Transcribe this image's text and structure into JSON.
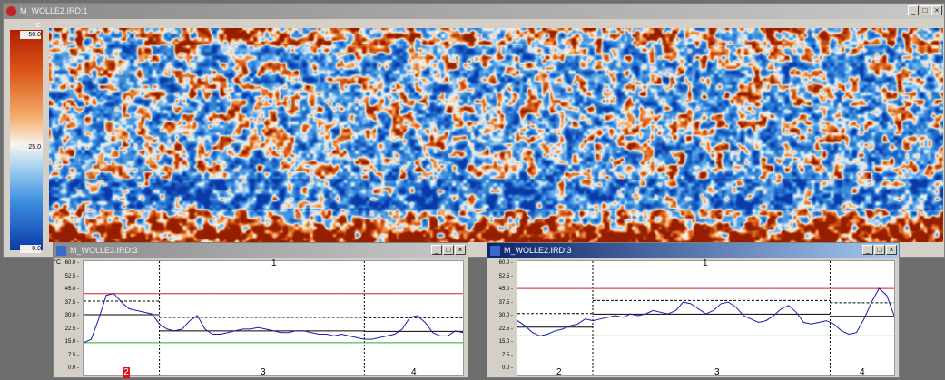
{
  "main_window": {
    "title": "M_WOLLE2.IRD:1",
    "controls": [
      "_",
      "□",
      "×"
    ]
  },
  "color_scale": {
    "unit": "°C",
    "max": "50.0",
    "mid": "25.0",
    "min": "0.0",
    "colors": {
      "hot": "#b41e00",
      "warm": "#f4b06e",
      "neutral": "#f8f4ee",
      "cool": "#3c8ee0",
      "cold": "#0b3aa8"
    }
  },
  "profile_windows": [
    {
      "title": "M_WOLLE3.IRD:3",
      "unit": "°C",
      "y_labels": [
        "60.0",
        "52.5",
        "45.0",
        "37.5",
        "30.0",
        "22.5",
        "15.0",
        "7.5",
        "0.0"
      ],
      "segment_labels": [
        "1",
        "2",
        "3",
        "4"
      ],
      "selected_segment": "2"
    },
    {
      "title": "M_WOLLE2.IRD:3",
      "unit": "",
      "y_labels": [
        "60.0",
        "52.5",
        "45.0",
        "37.5",
        "30.0",
        "22.5",
        "15.0",
        "7.5",
        "0.0"
      ],
      "segment_labels": [
        "1",
        "2",
        "3",
        "4"
      ]
    }
  ],
  "chart_data": [
    {
      "type": "line",
      "title": "",
      "xlabel": "",
      "ylabel": "°C",
      "ylim": [
        0,
        60
      ],
      "series": [
        {
          "values": [
            14,
            16,
            28,
            42,
            43,
            38,
            34,
            33,
            32,
            31,
            25,
            22,
            21,
            22,
            27,
            30,
            22,
            19,
            19,
            20,
            21,
            22,
            22,
            23,
            22,
            21,
            20,
            20,
            21,
            21,
            20,
            19,
            19,
            18,
            19,
            18,
            17,
            16,
            16,
            17,
            18,
            19,
            22,
            29,
            30,
            26,
            20,
            18,
            18,
            21,
            20
          ]
        }
      ],
      "reference_lines": [
        {
          "color": "#d02020",
          "values": [
            43,
            43,
            43,
            43,
            43,
            43,
            43
          ]
        },
        {
          "color": "#20b020",
          "values": [
            14,
            14,
            14,
            14,
            14,
            14,
            14
          ]
        }
      ],
      "segment_x": [
        0.2,
        0.74
      ]
    },
    {
      "type": "line",
      "title": "",
      "xlabel": "",
      "ylabel": "",
      "ylim": [
        0,
        60
      ],
      "series": [
        {
          "values": [
            27,
            24,
            20,
            18,
            19,
            21,
            22,
            24,
            25,
            28,
            27,
            28,
            29,
            30,
            29,
            31,
            30,
            31,
            33,
            32,
            31,
            33,
            38,
            37,
            34,
            31,
            33,
            37,
            38,
            35,
            30,
            28,
            26,
            27,
            30,
            34,
            36,
            32,
            26,
            25,
            26,
            27,
            25,
            21,
            19,
            20,
            28,
            38,
            46,
            42,
            30
          ]
        }
      ],
      "reference_lines": [
        {
          "color": "#d02020",
          "values": [
            46,
            46,
            46,
            46,
            46,
            46,
            46
          ]
        },
        {
          "color": "#20b020",
          "values": [
            18,
            18,
            18,
            18,
            18,
            18,
            18
          ]
        }
      ],
      "segment_x": [
        0.2,
        0.83
      ]
    }
  ]
}
